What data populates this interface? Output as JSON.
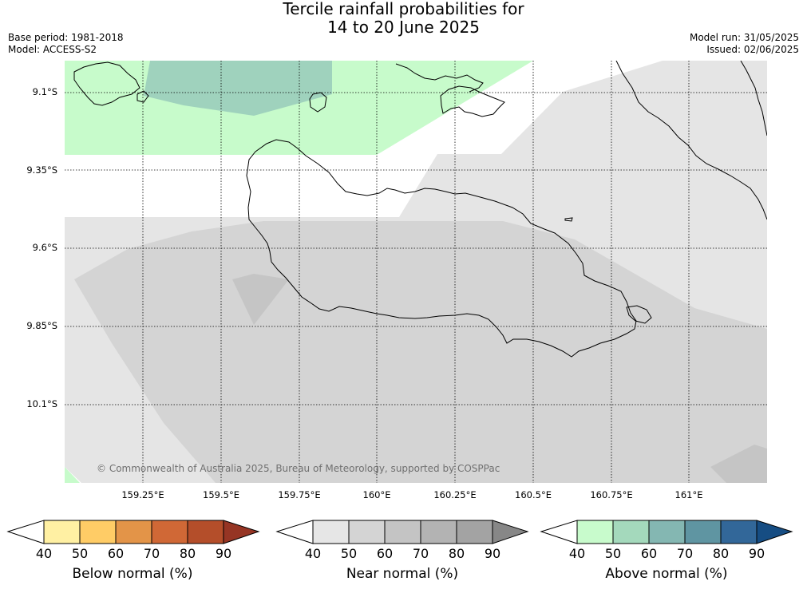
{
  "header": {
    "title_line1": "Tercile rainfall probabilities for",
    "title_line2": "14 to 20 June 2025",
    "base_period": "Base period: 1981-2018",
    "model": "Model: ACCESS-S2",
    "model_run": "Model run: 31/05/2025",
    "issued": "Issued: 02/06/2025"
  },
  "map": {
    "latitude_labels": [
      "9.1°S",
      "9.35°S",
      "9.6°S",
      "9.85°S",
      "10.1°S"
    ],
    "longitude_labels": [
      "159.25°E",
      "159.5°E",
      "159.75°E",
      "160°E",
      "160.25°E",
      "160.5°E",
      "160.75°E",
      "161°E"
    ],
    "credit": "© Commonwealth of Australia 2025, Bureau of Meteorology, supported by COSPPac",
    "colors": {
      "above_40_50": "#c7fbcb",
      "above_50_60": "#9fd2bd",
      "near_40_50": "#e5e5e5",
      "near_50_60": "#d4d4d4",
      "near_60_70": "#c5c5c5"
    }
  },
  "colorbars": [
    {
      "label": "Below normal (%)",
      "ticks": [
        "40",
        "50",
        "60",
        "70",
        "80",
        "90"
      ],
      "colors": [
        "#ffffff",
        "#fff0a3",
        "#ffcc66",
        "#e39448",
        "#d06836",
        "#b44e2a",
        "#963524"
      ]
    },
    {
      "label": "Near normal (%)",
      "ticks": [
        "40",
        "50",
        "60",
        "70",
        "80",
        "90"
      ],
      "colors": [
        "#ffffff",
        "#e6e6e6",
        "#d4d4d4",
        "#c4c4c4",
        "#b3b3b3",
        "#a3a3a3",
        "#878787"
      ]
    },
    {
      "label": "Above normal (%)",
      "ticks": [
        "40",
        "50",
        "60",
        "70",
        "80",
        "90"
      ],
      "colors": [
        "#ffffff",
        "#c8fbcc",
        "#a4d9bc",
        "#84b7b2",
        "#5f95a2",
        "#326799",
        "#164d83"
      ]
    }
  ]
}
